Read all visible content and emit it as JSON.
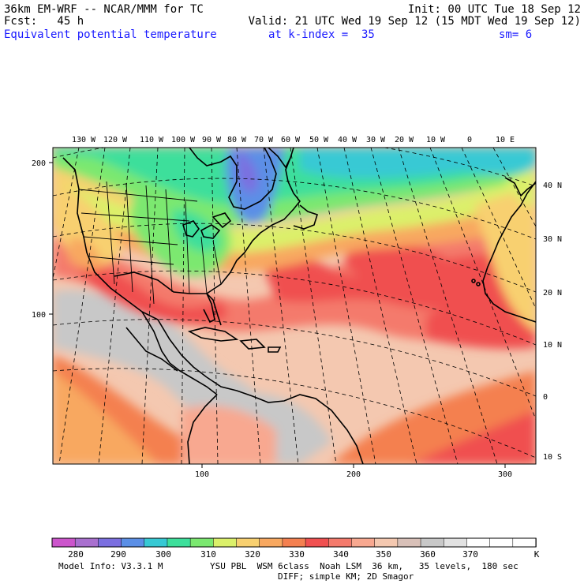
{
  "header": {
    "model": "36km EM-WRF -- NCAR/MMM for TC",
    "init": "Init: 00 UTC Tue 18 Sep 12",
    "fcst": "Fcst:   45 h",
    "valid": "Valid: 21 UTC Wed 19 Sep 12 (15 MDT Wed 19 Sep 12)",
    "field": "Equivalent potential temperature",
    "level": "at k-index =  35",
    "smoothing": "sm= 6"
  },
  "map": {
    "lon_labels": [
      "130 W",
      "120 W",
      "110 W",
      "100 W",
      "90 W",
      "80 W",
      "70 W",
      "60 W",
      "50 W",
      "40 W",
      "30 W",
      "20 W",
      "10 W",
      "0",
      "10 E"
    ],
    "lat_labels": [
      "40 N",
      "30 N",
      "20 N",
      "10 N",
      "0",
      "10 S"
    ],
    "grid_left_labels": [
      "200",
      "100"
    ],
    "grid_bottom_labels": [
      "100",
      "200",
      "300"
    ]
  },
  "colorbar": {
    "colors": [
      "#cc55cc",
      "#a970cf",
      "#7b6fe0",
      "#5b8fe6",
      "#37c9d4",
      "#3ddf9b",
      "#7be870",
      "#dbf06a",
      "#f8d070",
      "#f8a860",
      "#f48050",
      "#f05050",
      "#f47a6c",
      "#f8a890",
      "#f4c8b0",
      "#d8c0b8",
      "#c8c8c8",
      "#e2e2e2",
      "#ffffff",
      "#ffffff",
      "#ffffff"
    ],
    "labels": [
      "280",
      "290",
      "300",
      "310",
      "320",
      "330",
      "340",
      "350",
      "360",
      "370"
    ],
    "unit": "K"
  },
  "footer": {
    "line1_left": "Model Info: V3.3.1 M",
    "line1_right": "YSU PBL  WSM 6class  Noah LSM  36 km,   35 levels,  180 sec",
    "line2": "DIFF; simple KM; 2D Smagor"
  }
}
